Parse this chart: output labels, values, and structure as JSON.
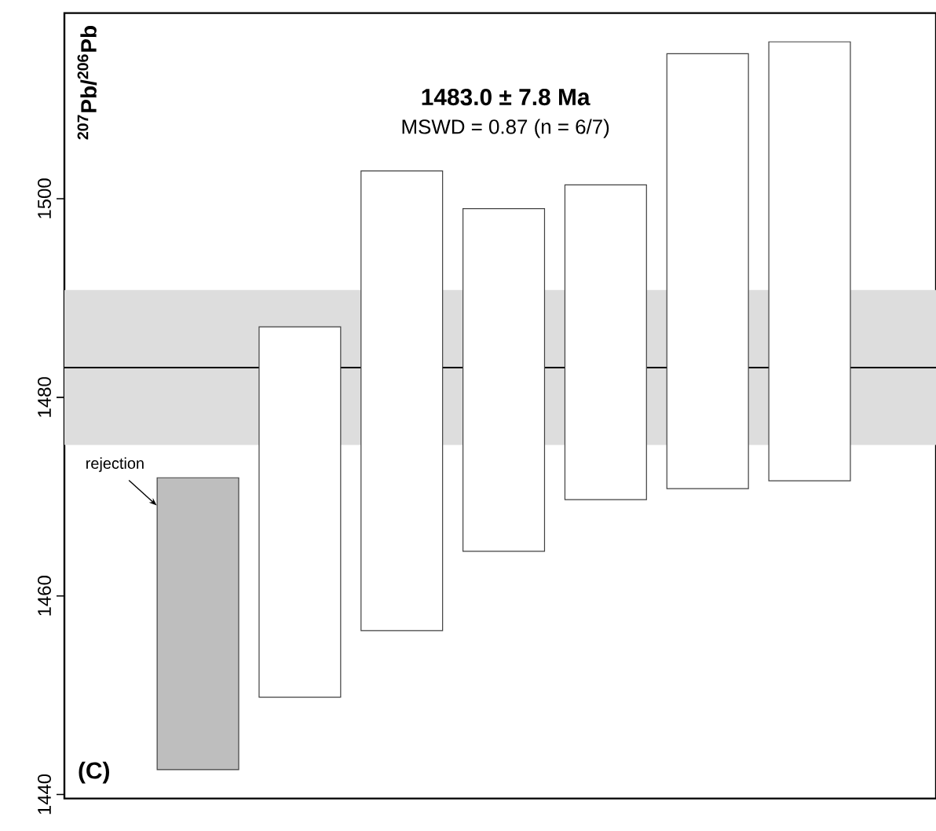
{
  "chart_data": {
    "type": "bar",
    "ylabel": "$^{207}$Pb/$^{206}$Pb",
    "categories": [
      null,
      null,
      null,
      null,
      null,
      null,
      null
    ],
    "base": [
      1442.5,
      1449.8,
      1456.5,
      1464.5,
      1469.7,
      1470.8,
      1471.6
    ],
    "values": [
      29.4,
      37.3,
      46.3,
      34.5,
      31.7,
      43.8,
      44.2
    ],
    "colors": [
      "#bebebe",
      "#ffffff",
      "#ffffff",
      "#ffffff",
      "#ffffff",
      "#ffffff",
      "#ffffff"
    ],
    "ylim": [
      1439.6,
      1518.7
    ],
    "yticks": [
      1440,
      1460,
      1480,
      1500
    ],
    "bands": [
      {
        "axis": "y",
        "from": 1475.2,
        "to": 1490.8,
        "color": "#dddddd"
      }
    ],
    "ref_lines": [
      {
        "axis": "y",
        "value": 1483.0,
        "color": "#000000"
      }
    ],
    "annotations": [
      "1483.0 ± 7.8 Ma",
      "MSWD = 0.87 (n = 6/7)",
      "rejection",
      "(C)"
    ]
  }
}
